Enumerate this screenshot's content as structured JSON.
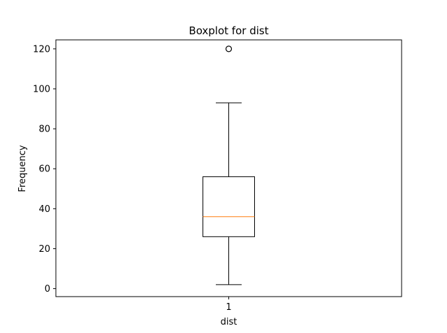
{
  "chart_data": {
    "type": "boxplot",
    "title": "Boxplot for dist",
    "xlabel": "dist",
    "ylabel": "Frequency",
    "categories": [
      "1"
    ],
    "series": [
      {
        "values": {
          "whisker_low": 2,
          "q1": 26,
          "median": 36,
          "q3": 56,
          "whisker_high": 93,
          "outliers": [
            120
          ]
        }
      }
    ],
    "yticks": [
      0,
      20,
      40,
      60,
      80,
      100,
      120
    ],
    "ylim": [
      -4,
      124.5
    ],
    "grid": false,
    "colors": {
      "box": "#000000",
      "median": "#ff7f0e",
      "outlier": "#000000"
    }
  }
}
